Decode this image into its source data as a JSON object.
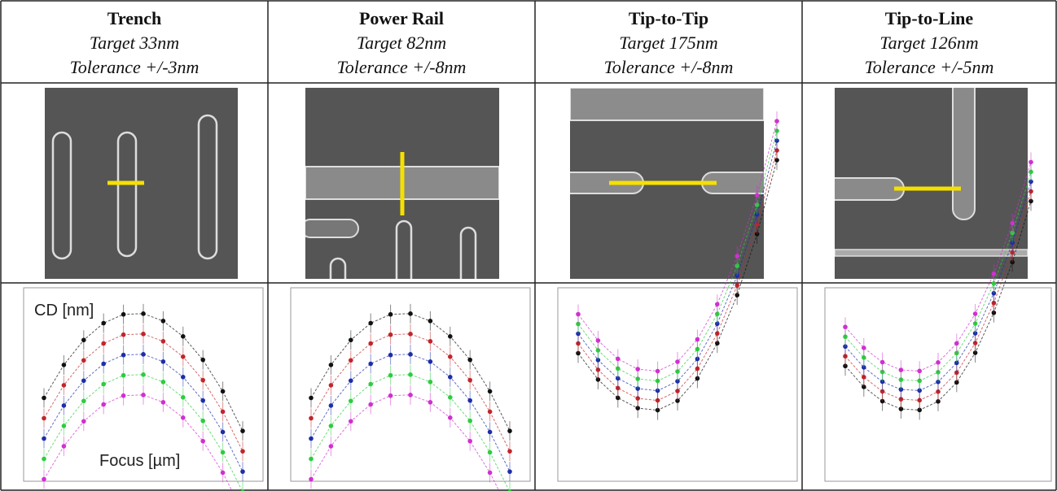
{
  "columns": [
    {
      "title": "Trench",
      "target": "Target 33nm",
      "tolerance": "Tolerance +/-3nm"
    },
    {
      "title": "Power Rail",
      "target": "Target 82nm",
      "tolerance": "Tolerance +/-8nm"
    },
    {
      "title": "Tip-to-Tip",
      "target": "Target 175nm",
      "tolerance": "Tolerance +/-8nm"
    },
    {
      "title": "Tip-to-Line",
      "target": "Target 126nm",
      "tolerance": "Tolerance +/-5nm"
    }
  ],
  "plot_labels": {
    "y": "CD [nm]",
    "x": "Focus [µm]"
  }
}
